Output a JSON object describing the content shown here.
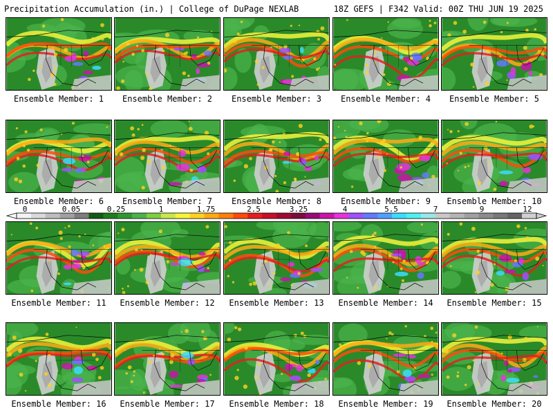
{
  "header": {
    "left": "Precipitation Accumulation (in.) | College of DuPage NEXLAB",
    "right": "18Z GEFS | F342 Valid: 00Z THU JUN 19 2025"
  },
  "panels": [
    {
      "caption": "Ensemble Member: 1"
    },
    {
      "caption": "Ensemble Member: 2"
    },
    {
      "caption": "Ensemble Member: 3"
    },
    {
      "caption": "Ensemble Member: 4"
    },
    {
      "caption": "Ensemble Member: 5"
    },
    {
      "caption": "Ensemble Member: 6"
    },
    {
      "caption": "Ensemble Member: 7"
    },
    {
      "caption": "Ensemble Member: 8"
    },
    {
      "caption": "Ensemble Member: 9"
    },
    {
      "caption": "Ensemble Member: 10"
    },
    {
      "caption": "Ensemble Member: 11"
    },
    {
      "caption": "Ensemble Member: 12"
    },
    {
      "caption": "Ensemble Member: 13"
    },
    {
      "caption": "Ensemble Member: 14"
    },
    {
      "caption": "Ensemble Member: 15"
    },
    {
      "caption": "Ensemble Member: 16"
    },
    {
      "caption": "Ensemble Member: 17"
    },
    {
      "caption": "Ensemble Member: 18"
    },
    {
      "caption": "Ensemble Member: 19"
    },
    {
      "caption": "Ensemble Member: 20"
    }
  ],
  "colorbar": {
    "labels": [
      "0",
      "0.05",
      "0.25",
      "1",
      "1.75",
      "2.5",
      "3.25",
      "4",
      "5.5",
      "7",
      "9",
      "12"
    ],
    "colors": [
      "#f2f2f2",
      "#d9d9d9",
      "#bdbdbd",
      "#a0a0a0",
      "#7d7d7d",
      "#145a14",
      "#1e7d1e",
      "#2e9a2e",
      "#4cb34c",
      "#7fcf3f",
      "#c8e84a",
      "#f5f53c",
      "#ffd21e",
      "#ffaa14",
      "#ff7f0a",
      "#ff4b0a",
      "#e61e1e",
      "#c80f28",
      "#a00a32",
      "#7d0a3c",
      "#960a78",
      "#c814aa",
      "#e632dc",
      "#a050ff",
      "#6478ff",
      "#50a0ff",
      "#3cdcff",
      "#50f0f0",
      "#9be6e6",
      "#c8c8c8",
      "#b4b4b4",
      "#a0a0a0",
      "#8c8c8c",
      "#787878",
      "#646464",
      "#d0d0d0"
    ]
  }
}
